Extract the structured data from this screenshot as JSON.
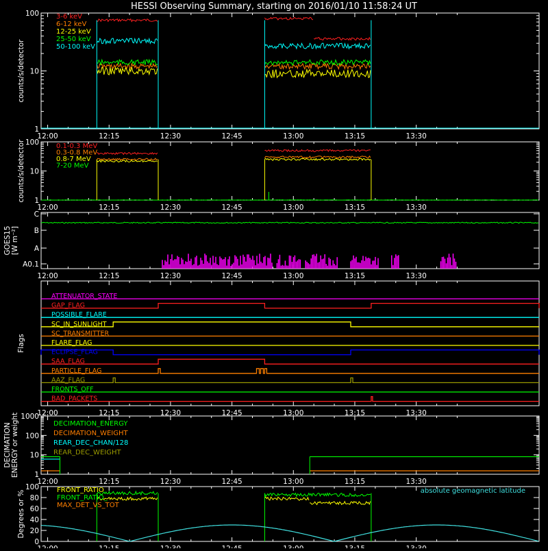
{
  "title": "HESSI Observing Summary, starting on 2016/01/10 11:58:24 UT",
  "colors": {
    "background": "#000000",
    "axes": "#ffffff",
    "red": "#ff2020",
    "orange": "#ff7f00",
    "yellow": "#ffff00",
    "green": "#00ff00",
    "cyan": "#00ffff",
    "magenta": "#ff00ff",
    "blue": "#0000ff",
    "olive": "#9a9a00",
    "gcyan": "#40e0e0"
  },
  "chart_data": [
    {
      "id": "lightcurves",
      "type": "line",
      "ylabel": "counts/s/detector",
      "yscale": "log",
      "ylim": [
        1,
        100
      ],
      "y_ticks": [
        "1",
        "10",
        "100"
      ],
      "x_ticks": [
        "12:00",
        "12:15",
        "12:30",
        "12:45",
        "13:00",
        "13:15",
        "13:30"
      ],
      "xlim": [
        "11:58:24",
        "14:00:00"
      ],
      "series": [
        {
          "name": "3-6 keV",
          "color": "#ff2020",
          "segments": [
            {
              "x": [
                "12:12",
                "12:27"
              ],
              "y": 75
            },
            {
              "x": [
                "12:53",
                "13:05"
              ],
              "y": 80
            },
            {
              "x": [
                "13:05",
                "13:19"
              ],
              "y": 36
            }
          ]
        },
        {
          "name": "6-12 keV",
          "color": "#ff7f00",
          "segments": [
            {
              "x": [
                "12:12",
                "12:27"
              ],
              "y": 12
            },
            {
              "x": [
                "12:53",
                "13:19"
              ],
              "y": 12
            }
          ]
        },
        {
          "name": "12-25 keV",
          "color": "#ffff00",
          "segments": [
            {
              "x": [
                "12:12",
                "12:27"
              ],
              "y": 10
            },
            {
              "x": [
                "12:53",
                "13:19"
              ],
              "y": 9
            }
          ]
        },
        {
          "name": "25-50 keV",
          "color": "#00ff00",
          "segments": [
            {
              "x": [
                "12:12",
                "12:27"
              ],
              "y": 14
            },
            {
              "x": [
                "12:53",
                "13:19"
              ],
              "y": 14
            }
          ]
        },
        {
          "name": "50-100 keV",
          "color": "#00ffff",
          "segments": [
            {
              "x": [
                "12:12",
                "12:27"
              ],
              "y": 33
            },
            {
              "x": [
                "12:53",
                "13:19"
              ],
              "y": 27
            }
          ]
        }
      ]
    },
    {
      "id": "lightcurves-high",
      "type": "line",
      "ylabel": "counts/s/detector",
      "yscale": "log",
      "ylim": [
        1,
        100
      ],
      "y_ticks": [
        "1",
        "10",
        "100"
      ],
      "x_ticks": [
        "12:00",
        "12:15",
        "12:30",
        "12:45",
        "13:00",
        "13:15",
        "13:30"
      ],
      "series": [
        {
          "name": "0.1-0.3 MeV",
          "color": "#ff2020",
          "segments": [
            {
              "x": [
                "12:12",
                "12:27"
              ],
              "y": 40
            },
            {
              "x": [
                "12:53",
                "13:19"
              ],
              "y": 50
            }
          ]
        },
        {
          "name": "0.3-0.8 MeV",
          "color": "#ff7f00",
          "segments": [
            {
              "x": [
                "12:12",
                "12:27"
              ],
              "y": 25
            },
            {
              "x": [
                "12:53",
                "13:19"
              ],
              "y": 30
            }
          ]
        },
        {
          "name": "0.8-7 MeV",
          "color": "#ffff00",
          "segments": [
            {
              "x": [
                "12:12",
                "12:27"
              ],
              "y": 22
            },
            {
              "x": [
                "12:53",
                "13:19"
              ],
              "y": 25
            }
          ]
        },
        {
          "name": "7-20 MeV",
          "color": "#00ff00",
          "segments": [
            {
              "x": [
                "11:58:24",
                "14:00"
              ],
              "y": 1
            }
          ]
        }
      ]
    },
    {
      "id": "goes",
      "type": "line",
      "ylabel_lines": [
        "GOES15",
        "[W m⁻²]"
      ],
      "y_ticks": [
        "A0.1",
        "A",
        "B",
        "C"
      ],
      "x_ticks": [
        "12:00",
        "12:15",
        "12:30",
        "12:45",
        "13:00",
        "13:15",
        "13:30"
      ],
      "series": [
        {
          "name": "long",
          "color": "#00ff00",
          "level": 2.8
        },
        {
          "name": "short",
          "color": "#ff00ff",
          "level": 0.1,
          "active": [
            [
              "12:28",
              "12:55"
            ],
            [
              "12:56",
              "13:02"
            ],
            [
              "13:03",
              "13:11"
            ],
            [
              "13:14",
              "13:21"
            ],
            [
              "13:24",
              "13:26"
            ],
            [
              "13:36",
              "13:40"
            ]
          ]
        }
      ]
    },
    {
      "id": "flags",
      "type": "line",
      "ylabel": "Flags",
      "x_ticks": [
        "12:00",
        "12:15",
        "12:30",
        "12:45",
        "13:00",
        "13:15",
        "13:30"
      ],
      "series": [
        {
          "name": "ATTENUATOR_STATE",
          "color": "#ff00ff",
          "on": []
        },
        {
          "name": "GAP_FLAG",
          "color": "#ff2020",
          "on": [
            [
              "12:27",
              "12:53"
            ],
            [
              "13:19",
              "14:00"
            ]
          ]
        },
        {
          "name": "POSSIBLE_FLARE",
          "color": "#00ffff",
          "on": []
        },
        {
          "name": "SC_IN_SUNLIGHT",
          "color": "#ffff00",
          "on": [
            [
              "12:16",
              "13:14"
            ]
          ]
        },
        {
          "name": "SC_TRANSMITTER",
          "color": "#ff7f00",
          "on": []
        },
        {
          "name": "FLARE_FLAG",
          "color": "#ffff00",
          "on": []
        },
        {
          "name": "ECLIPSE_FLAG",
          "color": "#0000ff",
          "on": [
            [
              "11:58:24",
              "12:16"
            ],
            [
              "13:14",
              "14:00"
            ]
          ]
        },
        {
          "name": "SAA_FLAG",
          "color": "#ff2020",
          "on": [
            [
              "12:27",
              "12:53"
            ]
          ]
        },
        {
          "name": "PARTICLE_FLAG",
          "color": "#ff7f00",
          "on": [
            [
              "12:27",
              "12:27:30"
            ],
            [
              "12:51",
              "12:51:40"
            ],
            [
              "12:52",
              "12:52:40"
            ],
            [
              "12:53",
              "12:53:30"
            ]
          ]
        },
        {
          "name": "AAZ_FLAG",
          "color": "#9a9a00",
          "on": [
            [
              "12:16",
              "12:16:30"
            ],
            [
              "13:14",
              "13:14:30"
            ]
          ]
        },
        {
          "name": "FRONTS_OFF",
          "color": "#00ff00",
          "on": []
        },
        {
          "name": "BAD_PACKETS",
          "color": "#ff2020",
          "on": [
            [
              "13:19",
              "13:19:20"
            ]
          ]
        }
      ]
    },
    {
      "id": "decimation",
      "type": "line",
      "ylabel_lines": [
        "DECIMATION",
        "ENERGY or weight"
      ],
      "yscale": "log",
      "ylim": [
        1,
        1000
      ],
      "y_ticks": [
        "1",
        "10",
        "100",
        "1000"
      ],
      "x_ticks": [
        "12:00",
        "12:15",
        "12:30",
        "12:45",
        "13:00",
        "13:15",
        "13:30"
      ],
      "series": [
        {
          "name": "DECIMATION_ENERGY",
          "color": "#00ff00",
          "segments": [
            {
              "x": [
                "11:58:24",
                "12:03"
              ],
              "y": 8
            },
            {
              "x": [
                "13:04",
                "14:00"
              ],
              "y": 8
            }
          ]
        },
        {
          "name": "DECIMATION_WEIGHT",
          "color": "#ff7f00",
          "segments": [
            {
              "x": [
                "11:58:24",
                "12:03"
              ],
              "y": 1.5
            },
            {
              "x": [
                "13:04",
                "14:00"
              ],
              "y": 1.5
            }
          ]
        },
        {
          "name": "REAR_DEC_CHAN/128",
          "color": "#00ffff",
          "segments": [
            {
              "x": [
                "11:58:24",
                "12:03"
              ],
              "y": 6
            }
          ]
        },
        {
          "name": "REAR_DEC_WEIGHT",
          "color": "#9a9a00",
          "segments": []
        }
      ]
    },
    {
      "id": "ratios",
      "type": "line",
      "ylabel": "Degrees or %",
      "ylim": [
        0,
        100
      ],
      "y_ticks": [
        "0",
        "20",
        "40",
        "60",
        "80",
        "100"
      ],
      "x_ticks": [
        "12:00",
        "12:15",
        "12:30",
        "12:45",
        "13:00",
        "13:15",
        "13:30"
      ],
      "annotation": "absolute geomagnetic latitude",
      "series": [
        {
          "name": "FRONT_RATIO",
          "color": "#ffff00",
          "segments": [
            {
              "x": [
                "12:12",
                "12:27"
              ],
              "y": 78
            },
            {
              "x": [
                "12:53",
                "13:04"
              ],
              "y": 78
            },
            {
              "x": [
                "13:04",
                "13:19"
              ],
              "y": 70
            }
          ]
        },
        {
          "name": "FRONT_RATIO_",
          "color": "#00ff00",
          "segments": [
            {
              "x": [
                "12:12",
                "12:27"
              ],
              "y": 88
            },
            {
              "x": [
                "12:53",
                "13:19"
              ],
              "y": 85
            }
          ]
        },
        {
          "name": "MAX_DET_VS_TOT",
          "color": "#ff7f00",
          "segments": []
        },
        {
          "name": "absolute geomagnetic latitude",
          "color": "#40e0e0",
          "curve": {
            "max": 30,
            "zeros": [
              "12:20",
              "13:10"
            ],
            "period_min": 100
          }
        }
      ]
    }
  ]
}
